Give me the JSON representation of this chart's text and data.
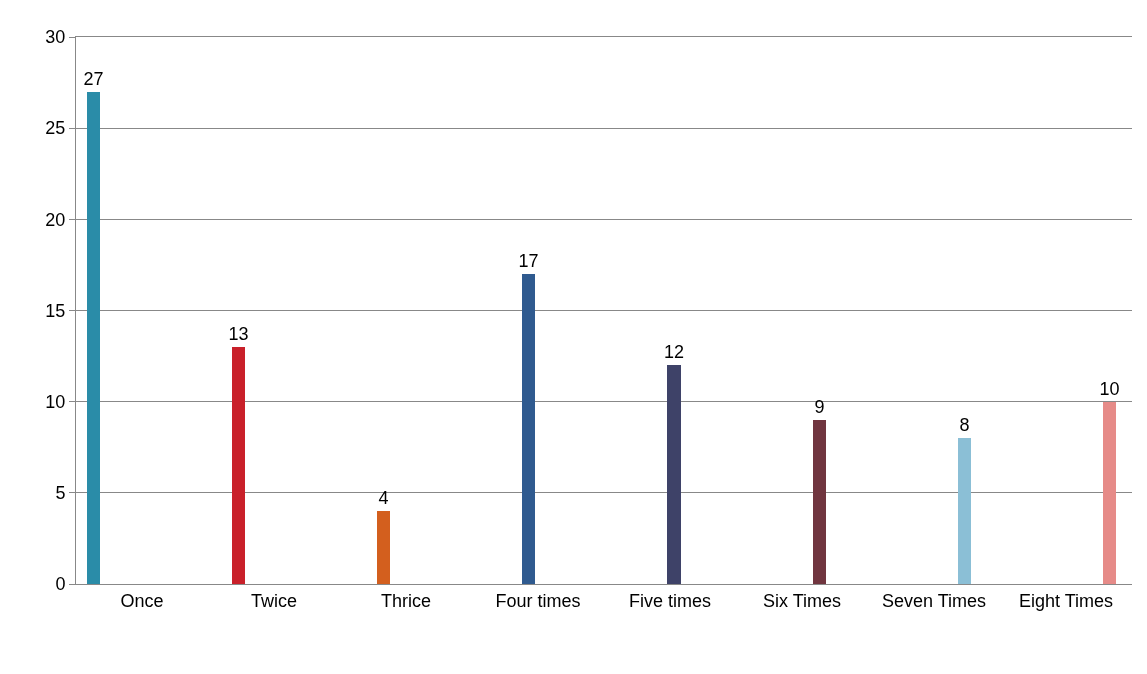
{
  "chart_data": {
    "type": "bar",
    "categories": [
      "Once",
      "Twice",
      "Thrice",
      "Four times",
      "Five times",
      "Six Times",
      "Seven Times",
      "Eight Times"
    ],
    "values": [
      27,
      13,
      4,
      17,
      12,
      9,
      8,
      10
    ],
    "colors": [
      "#2a8ca8",
      "#c9202a",
      "#d35f1e",
      "#2f5a8f",
      "#3e4268",
      "#70353f",
      "#8bbfd6",
      "#e68b88"
    ],
    "ylim": [
      0,
      30
    ],
    "yticks": [
      0,
      5,
      10,
      15,
      20,
      25,
      30
    ],
    "grid": "y",
    "data_labels": true
  }
}
